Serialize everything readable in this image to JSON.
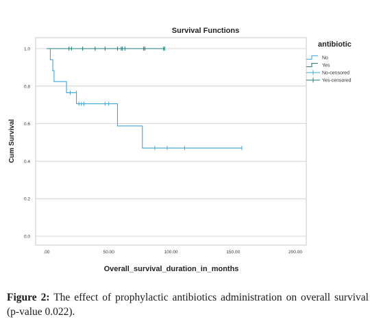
{
  "chart_data": {
    "type": "line",
    "subtype": "kaplan-meier step",
    "title": "Survival Functions",
    "xlabel": "Overall_survival_duration_in_months",
    "ylabel": "Cum Survival",
    "xlim": [
      0,
      200
    ],
    "ylim": [
      0,
      1
    ],
    "x_ticks": [
      0,
      50,
      100,
      150,
      200
    ],
    "x_tick_labels": [
      ".00",
      "50.00",
      "100.00",
      "150.00",
      "200.00"
    ],
    "y_ticks": [
      0,
      0.2,
      0.4,
      0.6,
      0.8,
      1.0
    ],
    "y_tick_labels": [
      "0.0",
      "0.2",
      "0.4",
      "0.6",
      "0.8",
      "1.0"
    ],
    "grid": "horizontal",
    "legend_title": "antibiotic",
    "legend_position": "right",
    "legend": [
      {
        "label": "No",
        "kind": "step",
        "series": 0
      },
      {
        "label": "Yes",
        "kind": "step",
        "series": 1
      },
      {
        "label": "No-censored",
        "kind": "censor",
        "series": 0
      },
      {
        "label": "Yes-censored",
        "kind": "censor",
        "series": 1
      }
    ],
    "series": [
      {
        "name": "No",
        "color": "#3aa8d8",
        "steps": [
          [
            0,
            1.0
          ],
          [
            3,
            0.941
          ],
          [
            5,
            0.882
          ],
          [
            6,
            0.824
          ],
          [
            16,
            0.765
          ],
          [
            24,
            0.706
          ],
          [
            57,
            0.588
          ],
          [
            77,
            0.47
          ]
        ],
        "end_x": 157,
        "censored": [
          [
            19,
            0.765
          ],
          [
            24,
            0.765
          ],
          [
            26,
            0.706
          ],
          [
            28,
            0.706
          ],
          [
            30,
            0.706
          ],
          [
            47,
            0.706
          ],
          [
            50,
            0.706
          ],
          [
            87,
            0.47
          ],
          [
            97,
            0.47
          ],
          [
            111,
            0.47
          ],
          [
            157,
            0.47
          ]
        ]
      },
      {
        "name": "Yes",
        "color": "#1e7d78",
        "steps": [
          [
            0,
            1.0
          ]
        ],
        "end_x": 95,
        "censored": [
          [
            18,
            1.0
          ],
          [
            20,
            1.0
          ],
          [
            29,
            1.0
          ],
          [
            39,
            1.0
          ],
          [
            47,
            1.0
          ],
          [
            57,
            1.0
          ],
          [
            60,
            1.0
          ],
          [
            61,
            1.0
          ],
          [
            63,
            1.0
          ],
          [
            78,
            1.0
          ],
          [
            79,
            1.0
          ],
          [
            94,
            1.0
          ],
          [
            95,
            1.0
          ]
        ]
      }
    ]
  },
  "caption": {
    "label": "Figure 2:",
    "text": " The effect of prophylactic antibiotics administration on overall survival (p-value 0.022)."
  }
}
